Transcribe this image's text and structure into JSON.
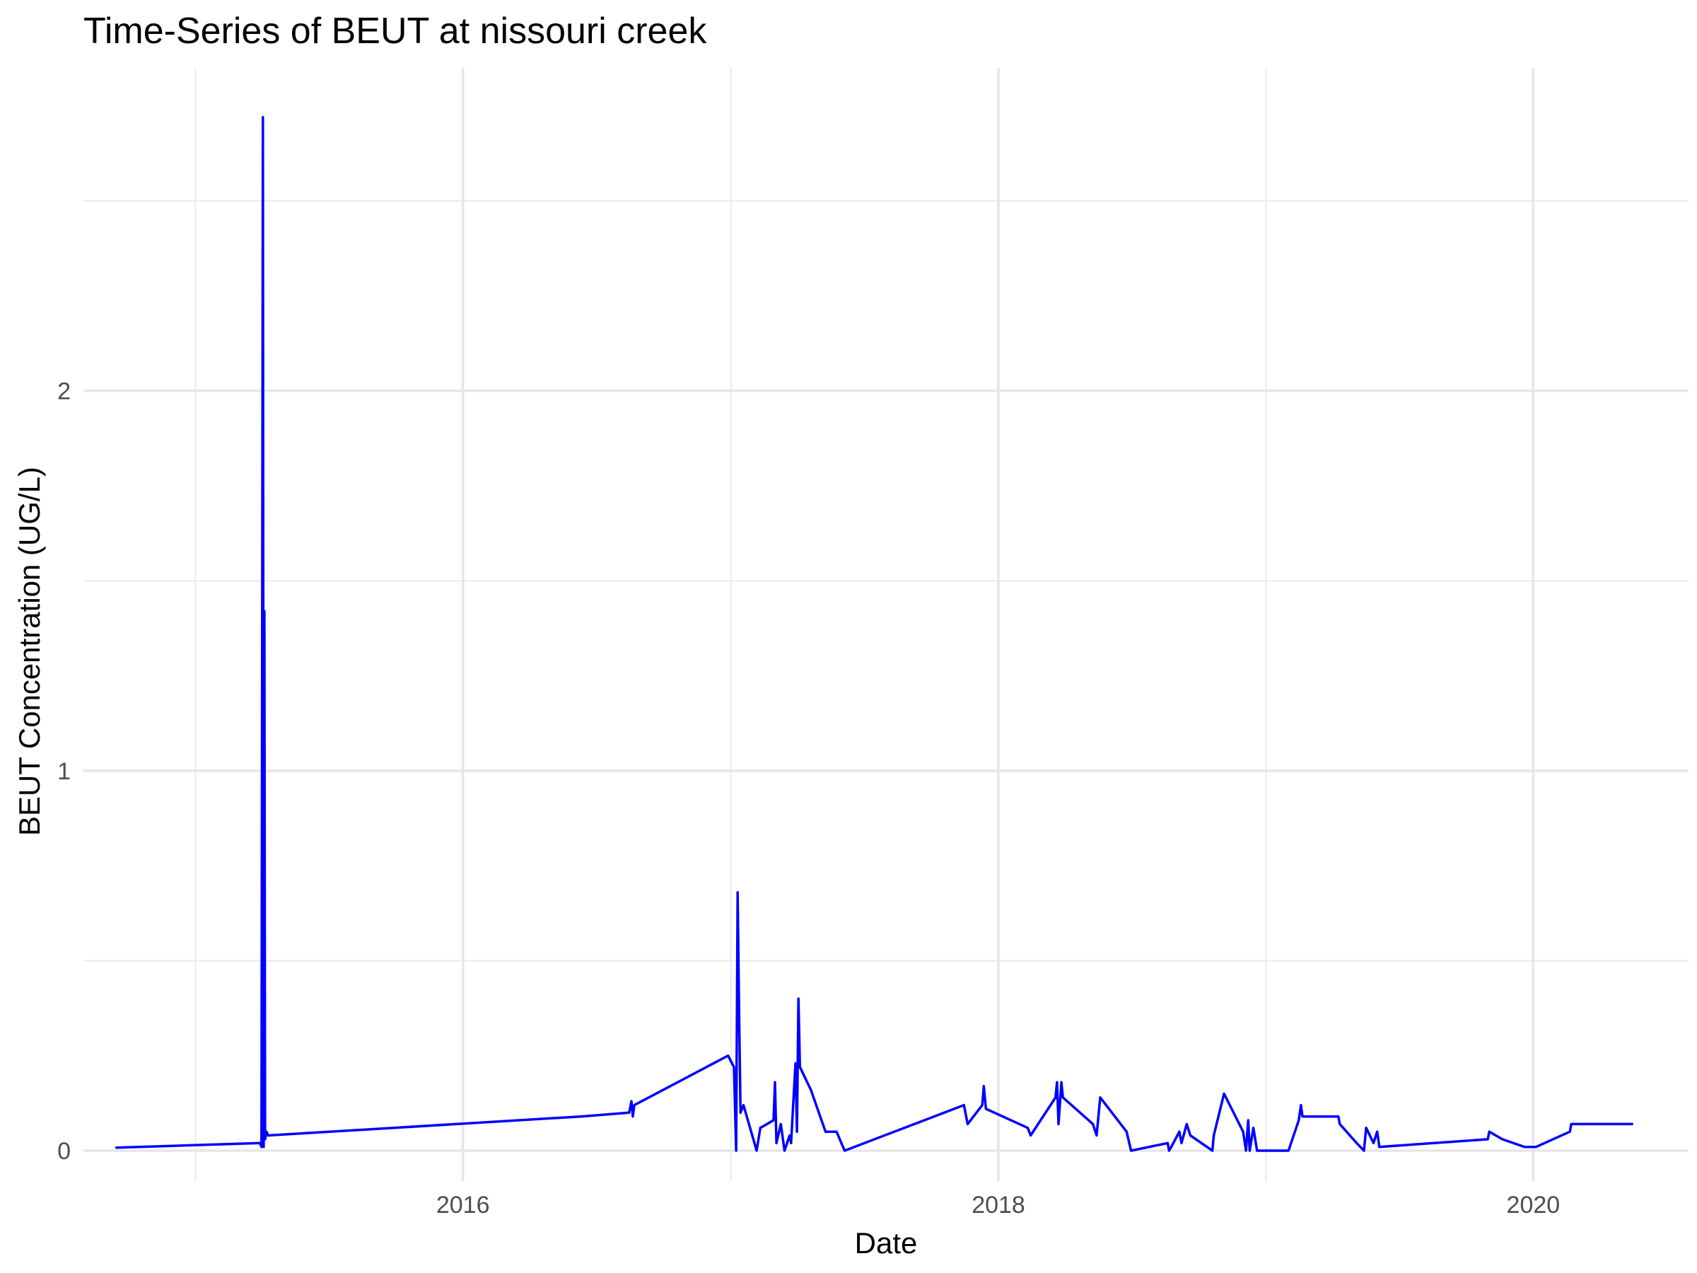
{
  "chart_data": {
    "type": "line",
    "title": "Time-Series of BEUT at nissouri creek",
    "xlabel": "Date",
    "ylabel": "BEUT Concentration (UG/L)",
    "x_axis_type": "date",
    "xlim": [
      "2014-08-01",
      "2020-07-31"
    ],
    "ylim": [
      -0.08,
      2.85
    ],
    "x_ticks": [
      {
        "value": "2016-01-01",
        "label": "2016"
      },
      {
        "value": "2018-01-01",
        "label": "2018"
      },
      {
        "value": "2020-01-01",
        "label": "2020"
      }
    ],
    "x_minor_ticks": [
      "2015-01-01",
      "2017-01-01",
      "2019-01-01"
    ],
    "y_ticks": [
      {
        "value": 0,
        "label": "0"
      },
      {
        "value": 1,
        "label": "1"
      },
      {
        "value": 2,
        "label": "2"
      }
    ],
    "y_minor_ticks": [
      0.5,
      1.5,
      2.5
    ],
    "grid": true,
    "legend": "none",
    "series": [
      {
        "color": "#0000FF",
        "points": [
          [
            "2014-09-15",
            0.008
          ],
          [
            "2015-03-30",
            0.02
          ],
          [
            "2015-04-01",
            0.01
          ],
          [
            "2015-04-03",
            2.72
          ],
          [
            "2015-04-04",
            0.01
          ],
          [
            "2015-04-05",
            1.42
          ],
          [
            "2015-04-06",
            0.03
          ],
          [
            "2015-04-08",
            0.05
          ],
          [
            "2015-04-10",
            0.04
          ],
          [
            "2016-06-10",
            0.09
          ],
          [
            "2016-08-15",
            0.1
          ],
          [
            "2016-08-18",
            0.13
          ],
          [
            "2016-08-20",
            0.09
          ],
          [
            "2016-08-22",
            0.12
          ],
          [
            "2016-12-28",
            0.25
          ],
          [
            "2017-01-05",
            0.22
          ],
          [
            "2017-01-08",
            0.0
          ],
          [
            "2017-01-10",
            0.68
          ],
          [
            "2017-01-12",
            0.36
          ],
          [
            "2017-01-14",
            0.1
          ],
          [
            "2017-01-18",
            0.12
          ],
          [
            "2017-02-05",
            0.0
          ],
          [
            "2017-02-10",
            0.06
          ],
          [
            "2017-02-28",
            0.08
          ],
          [
            "2017-03-02",
            0.18
          ],
          [
            "2017-03-04",
            0.02
          ],
          [
            "2017-03-10",
            0.07
          ],
          [
            "2017-03-15",
            0.0
          ],
          [
            "2017-03-22",
            0.04
          ],
          [
            "2017-03-24",
            0.02
          ],
          [
            "2017-03-30",
            0.23
          ],
          [
            "2017-04-01",
            0.05
          ],
          [
            "2017-04-03",
            0.4
          ],
          [
            "2017-04-05",
            0.22
          ],
          [
            "2017-04-20",
            0.16
          ],
          [
            "2017-05-10",
            0.05
          ],
          [
            "2017-05-25",
            0.05
          ],
          [
            "2017-06-05",
            0.0
          ],
          [
            "2017-11-15",
            0.12
          ],
          [
            "2017-11-20",
            0.07
          ],
          [
            "2017-12-10",
            0.12
          ],
          [
            "2017-12-12",
            0.17
          ],
          [
            "2017-12-15",
            0.11
          ],
          [
            "2018-02-10",
            0.06
          ],
          [
            "2018-02-14",
            0.04
          ],
          [
            "2018-03-20",
            0.14
          ],
          [
            "2018-03-22",
            0.18
          ],
          [
            "2018-03-24",
            0.07
          ],
          [
            "2018-03-28",
            0.18
          ],
          [
            "2018-03-30",
            0.14
          ],
          [
            "2018-05-10",
            0.07
          ],
          [
            "2018-05-15",
            0.04
          ],
          [
            "2018-05-20",
            0.14
          ],
          [
            "2018-06-25",
            0.05
          ],
          [
            "2018-07-01",
            0.0
          ],
          [
            "2018-08-20",
            0.02
          ],
          [
            "2018-08-22",
            0.0
          ],
          [
            "2018-08-25",
            0.01
          ],
          [
            "2018-09-05",
            0.05
          ],
          [
            "2018-09-08",
            0.02
          ],
          [
            "2018-09-15",
            0.07
          ],
          [
            "2018-09-20",
            0.04
          ],
          [
            "2018-10-20",
            0.0
          ],
          [
            "2018-10-22",
            0.04
          ],
          [
            "2018-11-05",
            0.15
          ],
          [
            "2018-12-01",
            0.05
          ],
          [
            "2018-12-05",
            0.0
          ],
          [
            "2018-12-08",
            0.08
          ],
          [
            "2018-12-10",
            0.0
          ],
          [
            "2018-12-15",
            0.06
          ],
          [
            "2018-12-20",
            0.0
          ],
          [
            "2019-02-01",
            0.0
          ],
          [
            "2019-02-15",
            0.08
          ],
          [
            "2019-02-18",
            0.12
          ],
          [
            "2019-02-20",
            0.09
          ],
          [
            "2019-04-10",
            0.09
          ],
          [
            "2019-04-12",
            0.07
          ],
          [
            "2019-05-05",
            0.02
          ],
          [
            "2019-05-15",
            0.0
          ],
          [
            "2019-05-18",
            0.06
          ],
          [
            "2019-05-28",
            0.02
          ],
          [
            "2019-06-02",
            0.05
          ],
          [
            "2019-06-05",
            0.01
          ],
          [
            "2019-10-31",
            0.03
          ],
          [
            "2019-11-02",
            0.05
          ],
          [
            "2019-11-20",
            0.03
          ],
          [
            "2019-12-20",
            0.01
          ],
          [
            "2020-01-05",
            0.01
          ],
          [
            "2020-02-20",
            0.05
          ],
          [
            "2020-02-22",
            0.07
          ],
          [
            "2020-05-15",
            0.07
          ]
        ]
      }
    ]
  }
}
